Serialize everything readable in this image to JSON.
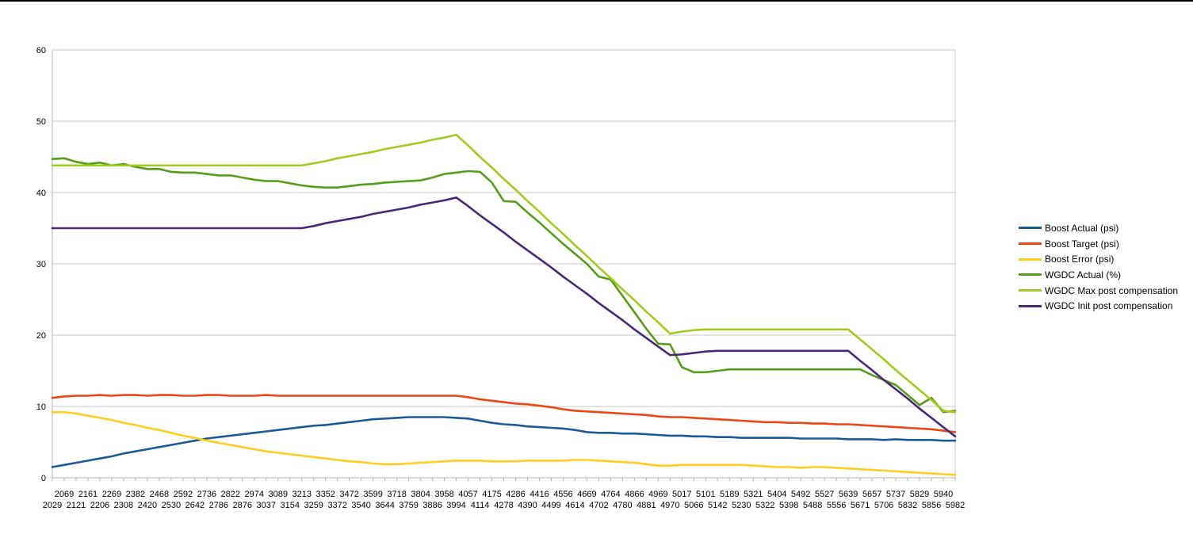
{
  "chart_data": {
    "type": "line",
    "title": "",
    "grid": true,
    "legend_position": "right",
    "axis_color": "#b3b3b3",
    "gridline_color": "#c9c9c9",
    "label_color": "#000000",
    "y_axis": {
      "min": 0,
      "max": 60,
      "ticks": [
        0,
        10,
        20,
        30,
        40,
        50,
        60
      ]
    },
    "x_labels_upper_row": [
      "2069",
      "2161",
      "2269",
      "2382",
      "2468",
      "2592",
      "2736",
      "2822",
      "2974",
      "3089",
      "3213",
      "3352",
      "3472",
      "3599",
      "3718",
      "3804",
      "3958",
      "4057",
      "4175",
      "4286",
      "4416",
      "4556",
      "4669",
      "4764",
      "4866",
      "4969",
      "5017",
      "5101",
      "5189",
      "5321",
      "5404",
      "5492",
      "5527",
      "5639",
      "5657",
      "5737",
      "5829",
      "5940"
    ],
    "x_labels_lower_row": [
      "2029",
      "2121",
      "2206",
      "2308",
      "2420",
      "2530",
      "2642",
      "2786",
      "2876",
      "3037",
      "3154",
      "3259",
      "3372",
      "3540",
      "3644",
      "3759",
      "3886",
      "3994",
      "4114",
      "4278",
      "4390",
      "4499",
      "4614",
      "4702",
      "4780",
      "4881",
      "4970",
      "5066",
      "5142",
      "5230",
      "5322",
      "5398",
      "5488",
      "5556",
      "5671",
      "5706",
      "5832",
      "5856",
      "5982"
    ],
    "series": [
      {
        "name": "Boost Actual (psi)",
        "color": "#1a5a96",
        "values": [
          1.5,
          1.8,
          2.1,
          2.4,
          2.7,
          3.0,
          3.4,
          3.7,
          4.0,
          4.3,
          4.6,
          4.9,
          5.2,
          5.5,
          5.7,
          5.9,
          6.1,
          6.3,
          6.5,
          6.7,
          6.9,
          7.1,
          7.3,
          7.4,
          7.6,
          7.8,
          8.0,
          8.2,
          8.3,
          8.4,
          8.5,
          8.5,
          8.5,
          8.5,
          8.4,
          8.3,
          8.0,
          7.7,
          7.5,
          7.4,
          7.2,
          7.1,
          7.0,
          6.9,
          6.7,
          6.4,
          6.3,
          6.3,
          6.2,
          6.2,
          6.1,
          6.0,
          5.9,
          5.9,
          5.8,
          5.8,
          5.7,
          5.7,
          5.6,
          5.6,
          5.6,
          5.6,
          5.6,
          5.5,
          5.5,
          5.5,
          5.5,
          5.4,
          5.4,
          5.4,
          5.3,
          5.4,
          5.3,
          5.3,
          5.3,
          5.2,
          5.2
        ]
      },
      {
        "name": "Boost Target (psi)",
        "color": "#ee4613",
        "values": [
          11.2,
          11.4,
          11.5,
          11.5,
          11.6,
          11.5,
          11.6,
          11.6,
          11.5,
          11.6,
          11.6,
          11.5,
          11.5,
          11.6,
          11.6,
          11.5,
          11.5,
          11.5,
          11.6,
          11.5,
          11.5,
          11.5,
          11.5,
          11.5,
          11.5,
          11.5,
          11.5,
          11.5,
          11.5,
          11.5,
          11.5,
          11.5,
          11.5,
          11.5,
          11.5,
          11.3,
          11.0,
          10.8,
          10.6,
          10.4,
          10.3,
          10.1,
          9.9,
          9.6,
          9.4,
          9.3,
          9.2,
          9.1,
          9.0,
          8.9,
          8.8,
          8.6,
          8.5,
          8.5,
          8.4,
          8.3,
          8.2,
          8.1,
          8.0,
          7.9,
          7.8,
          7.8,
          7.7,
          7.7,
          7.6,
          7.6,
          7.5,
          7.5,
          7.4,
          7.3,
          7.2,
          7.1,
          7.0,
          6.9,
          6.8,
          6.6,
          6.4
        ]
      },
      {
        "name": "Boost Error (psi)",
        "color": "#fecf20",
        "values": [
          9.2,
          9.2,
          9.0,
          8.7,
          8.4,
          8.1,
          7.7,
          7.4,
          7.0,
          6.7,
          6.3,
          5.9,
          5.6,
          5.2,
          4.9,
          4.6,
          4.3,
          4.0,
          3.7,
          3.5,
          3.3,
          3.1,
          2.9,
          2.7,
          2.5,
          2.3,
          2.2,
          2.0,
          1.9,
          1.9,
          2.0,
          2.1,
          2.2,
          2.3,
          2.4,
          2.4,
          2.4,
          2.3,
          2.3,
          2.3,
          2.4,
          2.4,
          2.4,
          2.4,
          2.5,
          2.5,
          2.4,
          2.3,
          2.2,
          2.1,
          1.9,
          1.7,
          1.7,
          1.8,
          1.8,
          1.8,
          1.8,
          1.8,
          1.8,
          1.7,
          1.6,
          1.5,
          1.5,
          1.4,
          1.5,
          1.5,
          1.4,
          1.3,
          1.2,
          1.1,
          1.0,
          0.9,
          0.8,
          0.7,
          0.6,
          0.5,
          0.4
        ]
      },
      {
        "name": "WGDC Actual (%)",
        "color": "#579d1c",
        "values": [
          44.7,
          44.8,
          44.3,
          44.0,
          44.2,
          43.8,
          44.0,
          43.6,
          43.3,
          43.3,
          42.9,
          42.8,
          42.8,
          42.6,
          42.4,
          42.4,
          42.1,
          41.8,
          41.6,
          41.6,
          41.3,
          41.0,
          40.8,
          40.7,
          40.7,
          40.9,
          41.1,
          41.2,
          41.4,
          41.5,
          41.6,
          41.7,
          42.1,
          42.6,
          42.8,
          43.0,
          42.9,
          41.4,
          38.8,
          38.7,
          37.2,
          35.8,
          34.3,
          32.8,
          31.4,
          30.0,
          28.2,
          27.8,
          25.5,
          23.2,
          20.9,
          18.8,
          18.7,
          15.5,
          14.8,
          14.8,
          15.0,
          15.2,
          15.2,
          15.2,
          15.2,
          15.2,
          15.2,
          15.2,
          15.2,
          15.2,
          15.2,
          15.2,
          15.2,
          14.4,
          13.7,
          13.0,
          11.6,
          10.2,
          11.2,
          9.2,
          9.4
        ]
      },
      {
        "name": "WGDC Max post compensation",
        "color": "#a3ca21",
        "values": [
          43.8,
          43.8,
          43.8,
          43.8,
          43.8,
          43.8,
          43.8,
          43.8,
          43.8,
          43.8,
          43.8,
          43.8,
          43.8,
          43.8,
          43.8,
          43.8,
          43.8,
          43.8,
          43.8,
          43.8,
          43.8,
          43.8,
          44.1,
          44.4,
          44.8,
          45.1,
          45.4,
          45.7,
          46.1,
          46.4,
          46.7,
          47.0,
          47.4,
          47.7,
          48.1,
          46.6,
          45.0,
          43.5,
          41.9,
          40.4,
          38.8,
          37.3,
          35.7,
          34.2,
          32.6,
          31.1,
          29.5,
          28.0,
          26.4,
          24.9,
          23.3,
          21.8,
          20.2,
          20.5,
          20.7,
          20.8,
          20.8,
          20.8,
          20.8,
          20.8,
          20.8,
          20.8,
          20.8,
          20.8,
          20.8,
          20.8,
          20.8,
          20.8,
          19.4,
          18.0,
          16.6,
          15.1,
          13.7,
          12.3,
          10.9,
          9.4,
          9.2
        ]
      },
      {
        "name": "WGDC Init post compensation",
        "color": "#482878",
        "values": [
          35.0,
          35.0,
          35.0,
          35.0,
          35.0,
          35.0,
          35.0,
          35.0,
          35.0,
          35.0,
          35.0,
          35.0,
          35.0,
          35.0,
          35.0,
          35.0,
          35.0,
          35.0,
          35.0,
          35.0,
          35.0,
          35.0,
          35.3,
          35.7,
          36.0,
          36.3,
          36.6,
          37.0,
          37.3,
          37.6,
          37.9,
          38.3,
          38.6,
          38.9,
          39.3,
          38.1,
          36.8,
          35.6,
          34.4,
          33.1,
          31.9,
          30.7,
          29.5,
          28.2,
          27.0,
          25.8,
          24.5,
          23.3,
          22.1,
          20.8,
          19.6,
          18.4,
          17.2,
          17.3,
          17.5,
          17.7,
          17.8,
          17.8,
          17.8,
          17.8,
          17.8,
          17.8,
          17.8,
          17.8,
          17.8,
          17.8,
          17.8,
          17.8,
          16.4,
          15.1,
          13.7,
          12.4,
          11.1,
          9.7,
          8.4,
          7.1,
          5.8
        ]
      }
    ]
  }
}
